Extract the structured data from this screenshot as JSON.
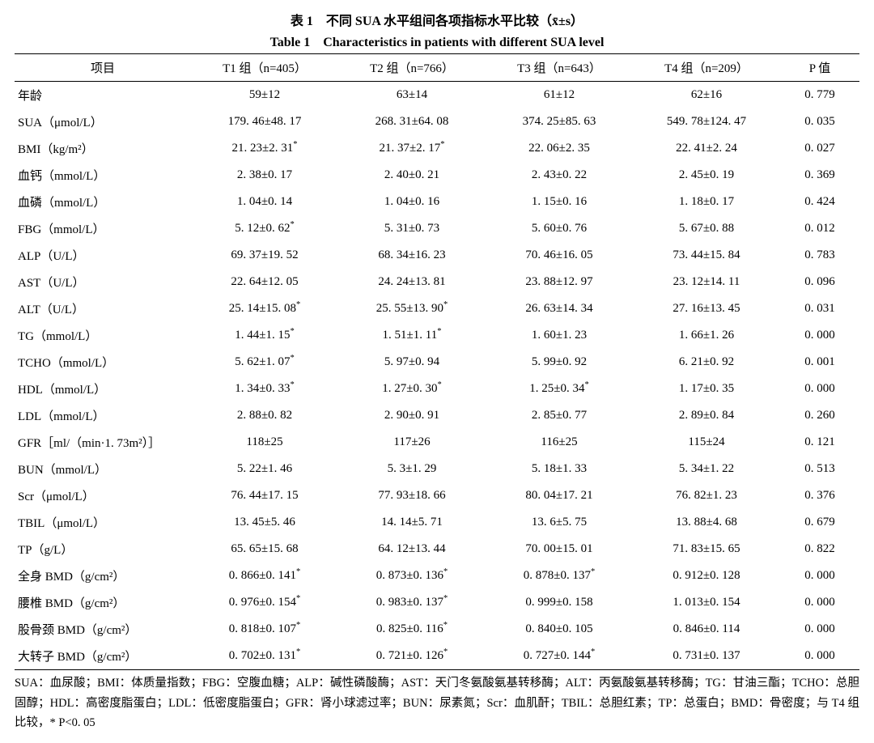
{
  "titles": {
    "cn": "表 1　不同 SUA 水平组间各项指标水平比较（x̄±s）",
    "en": "Table 1　Characteristics in patients with different SUA level"
  },
  "headers": {
    "item": "项目",
    "t1": "T1 组（n=405）",
    "t2": "T2 组（n=766）",
    "t3": "T3 组（n=643）",
    "t4": "T4 组（n=209）",
    "p": "P 值"
  },
  "rows": [
    {
      "label": "年龄",
      "t1": "59±12",
      "t2": "63±14",
      "t3": "61±12",
      "t4": "62±16",
      "p": "0. 779"
    },
    {
      "label": "SUA（μmol/L）",
      "t1": "179. 46±48. 17",
      "t2": "268. 31±64. 08",
      "t3": "374. 25±85. 63",
      "t4": "549. 78±124. 47",
      "p": "0. 035"
    },
    {
      "label": "BMI（kg/m²）",
      "t1": "21. 23±2. 31 *",
      "t2": "21. 37±2. 17 *",
      "t3": "22. 06±2. 35",
      "t4": "22. 41±2. 24",
      "p": "0. 027"
    },
    {
      "label": "血钙（mmol/L）",
      "t1": "2. 38±0. 17",
      "t2": "2. 40±0. 21",
      "t3": "2. 43±0. 22",
      "t4": "2. 45±0. 19",
      "p": "0. 369"
    },
    {
      "label": "血磷（mmol/L）",
      "t1": "1. 04±0. 14",
      "t2": "1. 04±0. 16",
      "t3": "1. 15±0. 16",
      "t4": "1. 18±0. 17",
      "p": "0. 424"
    },
    {
      "label": "FBG（mmol/L）",
      "t1": "5. 12±0. 62 *",
      "t2": "5. 31±0. 73",
      "t3": "5. 60±0. 76",
      "t4": "5. 67±0. 88",
      "p": "0. 012"
    },
    {
      "label": "ALP（U/L）",
      "t1": "69. 37±19. 52",
      "t2": "68. 34±16. 23",
      "t3": "70. 46±16. 05",
      "t4": "73. 44±15. 84",
      "p": "0. 783"
    },
    {
      "label": "AST（U/L）",
      "t1": "22. 64±12. 05",
      "t2": "24. 24±13. 81",
      "t3": "23. 88±12. 97",
      "t4": "23. 12±14. 11",
      "p": "0. 096"
    },
    {
      "label": "ALT（U/L）",
      "t1": "25. 14±15. 08 *",
      "t2": "25. 55±13. 90 *",
      "t3": "26. 63±14. 34",
      "t4": "27. 16±13. 45",
      "p": "0. 031"
    },
    {
      "label": "TG（mmol/L）",
      "t1": "1. 44±1. 15 *",
      "t2": "1. 51±1. 11 *",
      "t3": "1. 60±1. 23",
      "t4": "1. 66±1. 26",
      "p": "0. 000"
    },
    {
      "label": "TCHO（mmol/L）",
      "t1": "5. 62±1. 07 *",
      "t2": "5. 97±0. 94",
      "t3": "5. 99±0. 92",
      "t4": "6. 21±0. 92",
      "p": "0. 001"
    },
    {
      "label": "HDL（mmol/L）",
      "t1": "1. 34±0. 33 *",
      "t2": "1. 27±0. 30 *",
      "t3": "1. 25±0. 34 *",
      "t4": "1. 17±0. 35",
      "p": "0. 000"
    },
    {
      "label": "LDL（mmol/L）",
      "t1": "2. 88±0. 82",
      "t2": "2. 90±0. 91",
      "t3": "2. 85±0. 77",
      "t4": "2. 89±0. 84",
      "p": "0. 260"
    },
    {
      "label": "GFR［ml/（min·1. 73m²）］",
      "t1": "118±25",
      "t2": "117±26",
      "t3": "116±25",
      "t4": "115±24",
      "p": "0. 121"
    },
    {
      "label": "BUN（mmol/L）",
      "t1": "5. 22±1. 46",
      "t2": "5. 3±1. 29",
      "t3": "5. 18±1. 33",
      "t4": "5. 34±1. 22",
      "p": "0. 513"
    },
    {
      "label": "Scr（μmol/L）",
      "t1": "76. 44±17. 15",
      "t2": "77. 93±18. 66",
      "t3": "80. 04±17. 21",
      "t4": "76. 82±1. 23",
      "p": "0. 376"
    },
    {
      "label": "TBIL（μmol/L）",
      "t1": "13. 45±5. 46",
      "t2": "14. 14±5. 71",
      "t3": "13. 6±5. 75",
      "t4": "13. 88±4. 68",
      "p": "0. 679"
    },
    {
      "label": "TP（g/L）",
      "t1": "65. 65±15. 68",
      "t2": "64. 12±13. 44",
      "t3": "70. 00±15. 01",
      "t4": "71. 83±15. 65",
      "p": "0. 822"
    },
    {
      "label": "全身 BMD（g/cm²）",
      "t1": "0. 866±0. 141 *",
      "t2": "0. 873±0. 136 *",
      "t3": "0. 878±0. 137 *",
      "t4": "0. 912±0. 128",
      "p": "0. 000"
    },
    {
      "label": "腰椎 BMD（g/cm²）",
      "t1": "0. 976±0. 154 *",
      "t2": "0. 983±0. 137 *",
      "t3": "0. 999±0. 158",
      "t4": "1. 013±0. 154",
      "p": "0. 000"
    },
    {
      "label": "股骨颈 BMD（g/cm²）",
      "t1": "0. 818±0. 107 *",
      "t2": "0. 825±0. 116 *",
      "t3": "0. 840±0. 105",
      "t4": "0. 846±0. 114",
      "p": "0. 000"
    },
    {
      "label": "大转子 BMD（g/cm²）",
      "t1": "0. 702±0. 131 *",
      "t2": "0. 721±0. 126 *",
      "t3": "0. 727±0. 144 *",
      "t4": "0. 731±0. 137",
      "p": "0. 000"
    }
  ],
  "footnote": "SUA：血尿酸；BMI：体质量指数；FBG：空腹血糖；ALP：碱性磷酸酶；AST：天门冬氨酸氨基转移酶；ALT：丙氨酸氨基转移酶；TG：甘油三酯；TCHO：总胆固醇；HDL：高密度脂蛋白；LDL：低密度脂蛋白；GFR：肾小球滤过率；BUN：尿素氮；Scr：血肌酐；TBIL：总胆红素；TP：总蛋白；BMD：骨密度；与 T4 组比较，* P<0. 05"
}
